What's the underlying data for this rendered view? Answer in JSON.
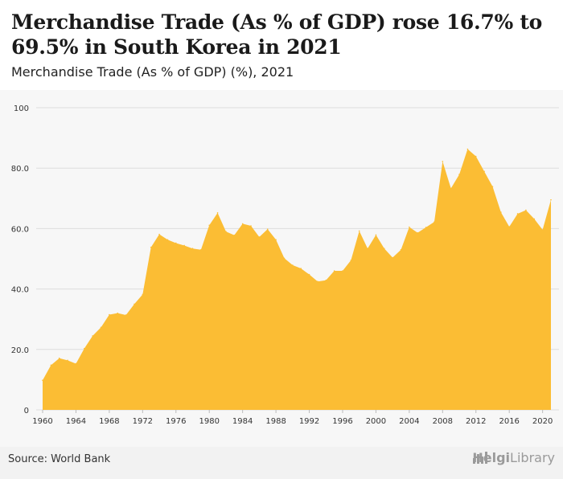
{
  "header": {
    "title": "Merchandise Trade (As % of GDP) rose 16.7% to 69.5% in South Korea in 2021",
    "subtitle": "Merchandise Trade (As % of GDP) (%), 2021"
  },
  "footer": {
    "source": "Source: World Bank",
    "logo_bold": "Helgi",
    "logo_rest": "Library",
    "logo_icon": "bar-chart-icon"
  },
  "colors": {
    "area_fill": "#fbbd34",
    "grid": "#dddddd",
    "axis_text": "#333333"
  },
  "chart_data": {
    "type": "area",
    "title": "Merchandise Trade (As % of GDP) (%), 2021",
    "xlabel": "",
    "ylabel": "",
    "ylim": [
      0,
      100
    ],
    "yticks": [
      "0",
      "20.0",
      "40.0",
      "60.0",
      "80.0",
      "100"
    ],
    "ytick_values": [
      0,
      20,
      40,
      60,
      80,
      100
    ],
    "xticks": [
      "1960",
      "1964",
      "1968",
      "1972",
      "1976",
      "1980",
      "1984",
      "1988",
      "1992",
      "1996",
      "2000",
      "2004",
      "2008",
      "2012",
      "2016",
      "2020"
    ],
    "grid": true,
    "x": [
      1960,
      1961,
      1962,
      1963,
      1964,
      1965,
      1966,
      1967,
      1968,
      1969,
      1970,
      1971,
      1972,
      1973,
      1974,
      1975,
      1976,
      1977,
      1978,
      1979,
      1980,
      1981,
      1982,
      1983,
      1984,
      1985,
      1986,
      1987,
      1988,
      1989,
      1990,
      1991,
      1992,
      1993,
      1994,
      1995,
      1996,
      1997,
      1998,
      1999,
      2000,
      2001,
      2002,
      2003,
      2004,
      2005,
      2006,
      2007,
      2008,
      2009,
      2010,
      2011,
      2012,
      2013,
      2014,
      2015,
      2016,
      2017,
      2018,
      2019,
      2020,
      2021
    ],
    "series": [
      {
        "values": [
          9.8,
          14.8,
          17.1,
          16.4,
          15.3,
          20.3,
          24.5,
          27.3,
          31.5,
          32.0,
          31.4,
          35.0,
          38.2,
          53.8,
          58.1,
          56.3,
          55.2,
          54.4,
          53.4,
          53.0,
          61.1,
          65.2,
          59.0,
          57.8,
          61.6,
          60.9,
          57.2,
          59.8,
          56.3,
          50.2,
          47.9,
          46.8,
          44.8,
          42.5,
          42.9,
          46.0,
          46.0,
          49.5,
          59.2,
          53.4,
          57.9,
          53.4,
          50.4,
          53.0,
          60.5,
          58.6,
          60.4,
          62.2,
          82.2,
          73.3,
          77.9,
          86.3,
          83.9,
          78.9,
          73.9,
          65.4,
          60.6,
          64.9,
          66.1,
          63.2,
          59.6,
          69.5
        ]
      }
    ]
  }
}
